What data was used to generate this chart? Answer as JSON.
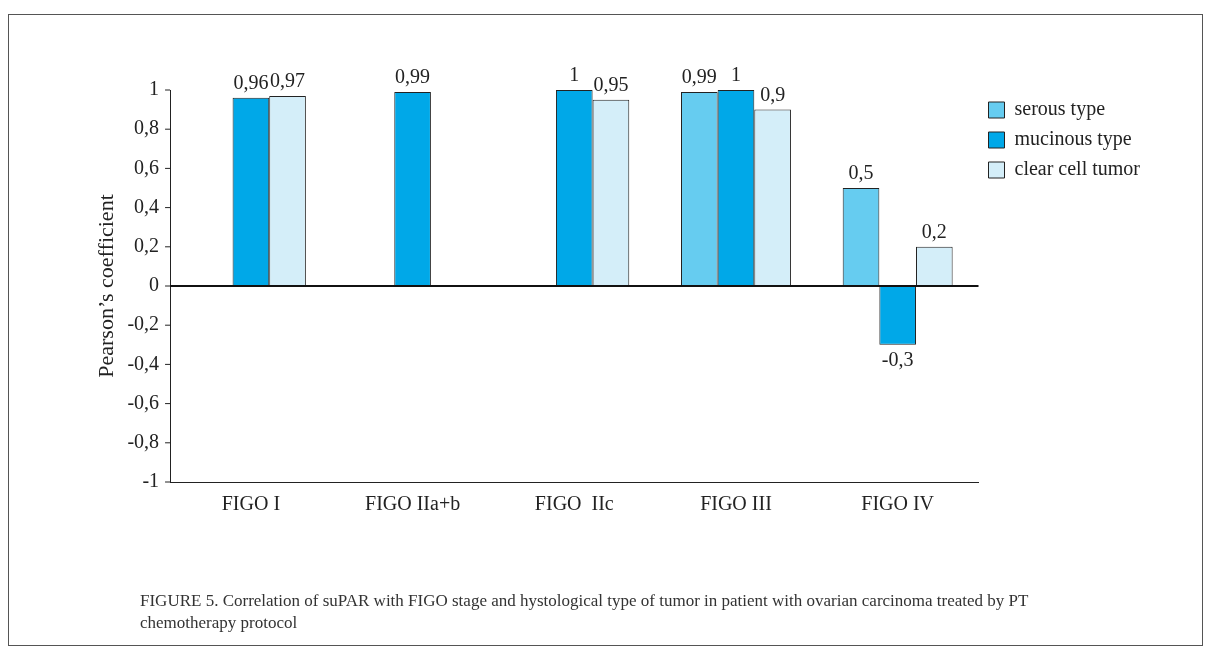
{
  "chart_data": {
    "type": "bar",
    "categories": [
      "FIGO I",
      "FIGO IIa+b",
      "FIGO  IIc",
      "FIGO III",
      "FIGO IV"
    ],
    "ylabel": "Pearson’s coefficient",
    "series": [
      {
        "name": "serous type",
        "color": "#66ccf0",
        "values": [
          null,
          null,
          null,
          0.99,
          0.5
        ],
        "value_labels": [
          null,
          null,
          null,
          "0,99",
          "0,5"
        ]
      },
      {
        "name": "mucinous type",
        "color": "#00a8e8",
        "values": [
          0.96,
          0.99,
          1,
          1,
          -0.3
        ],
        "value_labels": [
          "0,96",
          "0,99",
          "1",
          "1",
          "-0,3"
        ]
      },
      {
        "name": "clear cell tumor",
        "color": "#d4eef9",
        "values": [
          0.97,
          null,
          0.95,
          0.9,
          0.2
        ],
        "value_labels": [
          "0,97",
          null,
          "0,95",
          "0,9",
          "0,2"
        ]
      }
    ],
    "ylim": [
      -1,
      1
    ],
    "yticks": [
      {
        "value": -1,
        "label": "-1"
      },
      {
        "value": -0.8,
        "label": "-0,8"
      },
      {
        "value": -0.6,
        "label": "-0,6"
      },
      {
        "value": -0.4,
        "label": "-0,4"
      },
      {
        "value": -0.2,
        "label": "-0,2"
      },
      {
        "value": 0,
        "label": "0"
      },
      {
        "value": 0.2,
        "label": "0,2"
      },
      {
        "value": 0.4,
        "label": "0,4"
      },
      {
        "value": 0.6,
        "label": "0,6"
      },
      {
        "value": 0.8,
        "label": "0,8"
      },
      {
        "value": 1,
        "label": "1"
      }
    ],
    "grid": false,
    "ref_lines": [
      {
        "axis": "y",
        "value": 0,
        "color": "#111111"
      }
    ],
    "legend": "top right",
    "annotations": [
      "FIGURE 5. Correlation of suPAR with FIGO stage and hystological type of tumor in patient with ovarian carcinoma treated by PT chemotherapy protocol"
    ]
  }
}
